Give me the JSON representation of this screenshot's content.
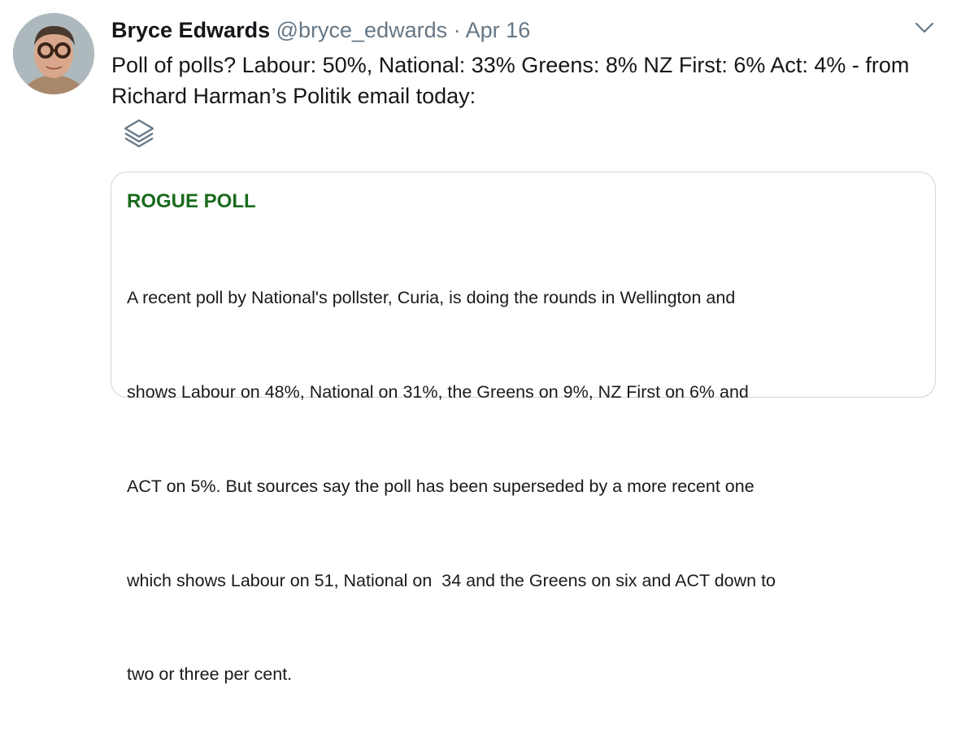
{
  "tweet": {
    "author_name": "Bryce Edwards",
    "handle": "@bryce_edwards",
    "separator": "·",
    "date": "Apr 16",
    "text": "Poll of polls? Labour: 50%, National: 33% Greens: 8% NZ First: 6% Act: 4% - from Richard Harman’s Politik email today:",
    "media_icon": "layers-icon",
    "menu_icon": "chevron-down-icon"
  },
  "card": {
    "title": "ROGUE POLL",
    "title_color": "#1a6b1e",
    "lines": [
      "A recent poll by National's pollster, Curia, is doing the rounds in Wellington and",
      "shows Labour on 48%, National on 31%, the Greens on 9%, NZ First on 6% and",
      "ACT on 5%. But sources say the poll has been superseded by a more recent one",
      "which shows Labour on 51, National on  34 and the Greens on six and ACT down to",
      "two or three per cent."
    ]
  }
}
